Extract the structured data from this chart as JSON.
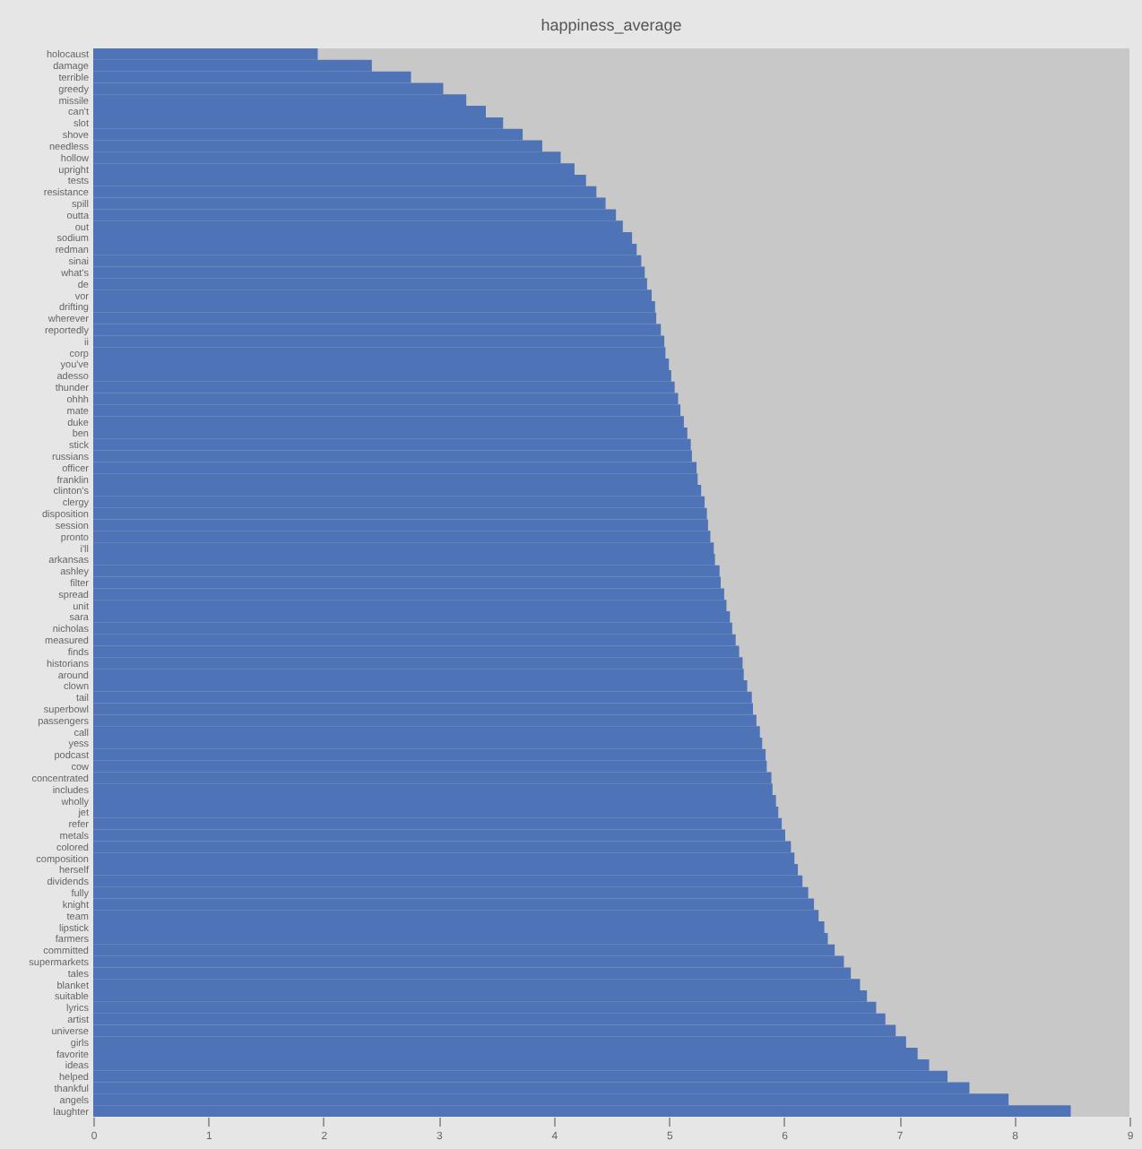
{
  "chart_data": {
    "type": "bar",
    "orientation": "horizontal",
    "title": "happiness_average",
    "categories": [
      "holocaust",
      "damage",
      "terrible",
      "greedy",
      "missile",
      "can't",
      "slot",
      "shove",
      "needless",
      "hollow",
      "upright",
      "tests",
      "resistance",
      "spill",
      "outta",
      "out",
      "sodium",
      "redman",
      "sinai",
      "what's",
      "de",
      "vor",
      "drifting",
      "wherever",
      "reportedly",
      "ii",
      "corp",
      "you've",
      "adesso",
      "thunder",
      "ohhh",
      "mate",
      "duke",
      "ben",
      "stick",
      "russians",
      "officer",
      "franklin",
      "clinton's",
      "clergy",
      "disposition",
      "session",
      "pronto",
      "i'll",
      "arkansas",
      "ashley",
      "filter",
      "spread",
      "unit",
      "sara",
      "nicholas",
      "measured",
      "finds",
      "historians",
      "around",
      "clown",
      "tail",
      "superbowl",
      "passengers",
      "call",
      "yess",
      "podcast",
      "cow",
      "concentrated",
      "includes",
      "wholly",
      "jet",
      "refer",
      "metals",
      "colored",
      "composition",
      "herself",
      "dividends",
      "fully",
      "knight",
      "team",
      "lipstick",
      "farmers",
      "committed",
      "supermarkets",
      "tales",
      "blanket",
      "suitable",
      "lyrics",
      "artist",
      "universe",
      "girls",
      "favorite",
      "ideas",
      "helped",
      "thankful",
      "angels",
      "laughter"
    ],
    "values": [
      1.95,
      2.42,
      2.76,
      3.04,
      3.24,
      3.41,
      3.56,
      3.73,
      3.9,
      4.06,
      4.18,
      4.28,
      4.37,
      4.45,
      4.54,
      4.6,
      4.68,
      4.72,
      4.76,
      4.79,
      4.81,
      4.85,
      4.88,
      4.89,
      4.93,
      4.96,
      4.97,
      5.0,
      5.02,
      5.05,
      5.08,
      5.1,
      5.13,
      5.16,
      5.19,
      5.2,
      5.24,
      5.25,
      5.28,
      5.31,
      5.33,
      5.34,
      5.36,
      5.39,
      5.4,
      5.44,
      5.45,
      5.48,
      5.5,
      5.53,
      5.55,
      5.58,
      5.61,
      5.64,
      5.65,
      5.68,
      5.72,
      5.73,
      5.76,
      5.79,
      5.81,
      5.84,
      5.85,
      5.89,
      5.9,
      5.93,
      5.95,
      5.98,
      6.01,
      6.06,
      6.09,
      6.12,
      6.16,
      6.21,
      6.26,
      6.3,
      6.35,
      6.38,
      6.44,
      6.52,
      6.58,
      6.66,
      6.72,
      6.8,
      6.88,
      6.97,
      7.06,
      7.16,
      7.26,
      7.42,
      7.61,
      7.95,
      8.49
    ],
    "color": "#4e73b6",
    "xlim": [
      0,
      9
    ],
    "xticks": [
      0,
      1,
      2,
      3,
      4,
      5,
      6,
      7,
      8,
      9
    ],
    "grid": false
  }
}
